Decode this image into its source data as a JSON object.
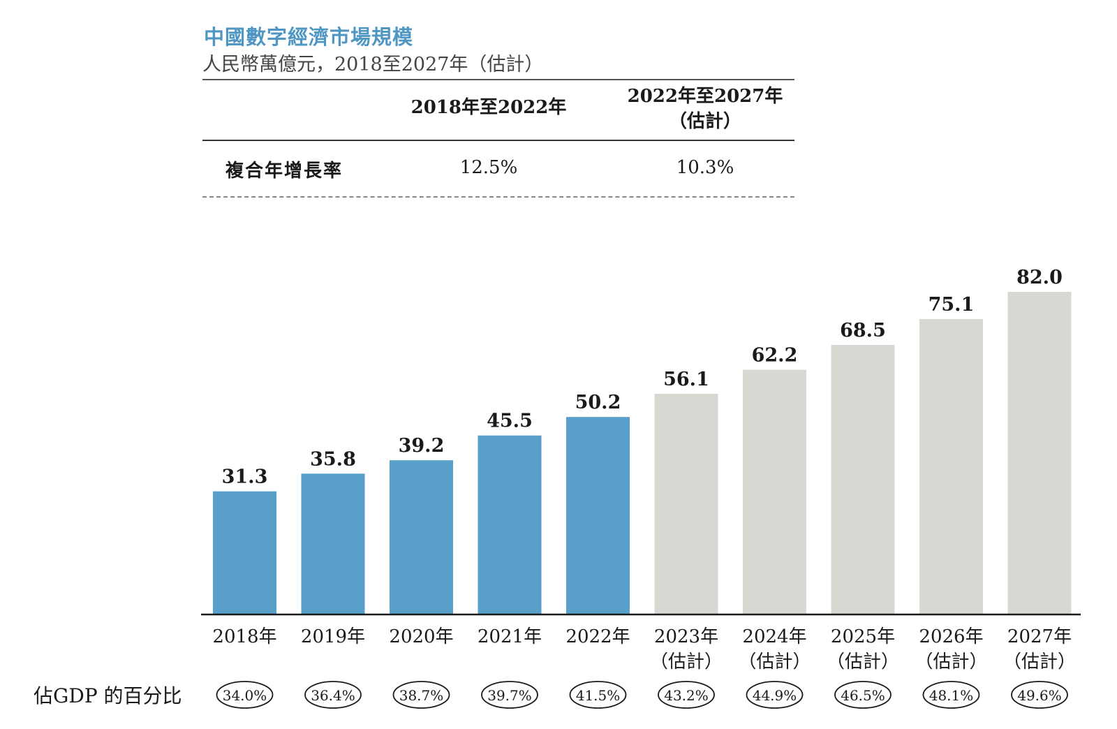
{
  "header": {
    "title": "中國數字經濟市場規模",
    "subtitle": "人民幣萬億元，2018至2027年（估計）"
  },
  "cagr_table": {
    "col1": "2018年至2022年",
    "col2_line1": "2022年至2027年",
    "col2_line2": "（估計）",
    "row_label": "複合年增長率",
    "val1": "12.5%",
    "val2": "10.3%"
  },
  "gdp_row": {
    "label": "佔GDP 的百分比"
  },
  "colors": {
    "historical": "#589fc9",
    "estimate": "#d8d8d3",
    "title": "#4f97c2"
  },
  "chart_data": {
    "type": "bar",
    "title": "中國數字經濟市場規模",
    "subtitle": "人民幣萬億元，2018至2027年（估計）",
    "categories": [
      "2018年",
      "2019年",
      "2020年",
      "2021年",
      "2022年",
      "2023年",
      "2024年",
      "2025年",
      "2026年",
      "2027年"
    ],
    "category_notes": [
      "",
      "",
      "",
      "",
      "",
      "（估計）",
      "（估計）",
      "（估計）",
      "（估計）",
      "（估計）"
    ],
    "values": [
      31.3,
      35.8,
      39.2,
      45.5,
      50.2,
      56.1,
      62.2,
      68.5,
      75.1,
      82.0
    ],
    "value_labels": [
      "31.3",
      "35.8",
      "39.2",
      "45.5",
      "50.2",
      "56.1",
      "62.2",
      "68.5",
      "75.1",
      "82.0"
    ],
    "estimated": [
      false,
      false,
      false,
      false,
      false,
      true,
      true,
      true,
      true,
      true
    ],
    "gdp_share": [
      "34.0%",
      "36.4%",
      "38.7%",
      "39.7%",
      "41.5%",
      "43.2%",
      "44.9%",
      "46.5%",
      "48.1%",
      "49.6%"
    ],
    "ylim": [
      0,
      82.0
    ],
    "grid": false,
    "legend": "none"
  }
}
